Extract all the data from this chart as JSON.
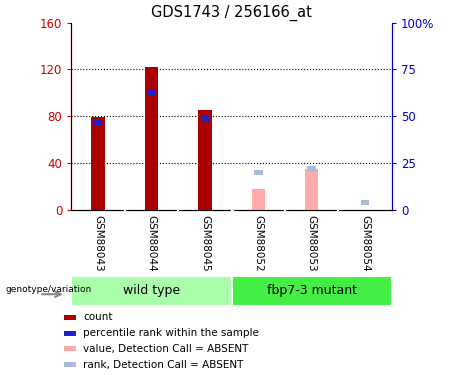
{
  "title": "GDS1743 / 256166_at",
  "samples": [
    "GSM88043",
    "GSM88044",
    "GSM88045",
    "GSM88052",
    "GSM88053",
    "GSM88054"
  ],
  "bar_data": [
    {
      "sample": "GSM88043",
      "count": 79,
      "percentile": 47,
      "absent_value": null,
      "absent_rank": null
    },
    {
      "sample": "GSM88044",
      "count": 122,
      "percentile": 63,
      "absent_value": null,
      "absent_rank": null
    },
    {
      "sample": "GSM88045",
      "count": 85,
      "percentile": 49,
      "absent_value": null,
      "absent_rank": null
    },
    {
      "sample": "GSM88052",
      "count": null,
      "percentile": null,
      "absent_value": 18,
      "absent_rank": 20
    },
    {
      "sample": "GSM88053",
      "count": null,
      "percentile": null,
      "absent_value": 35,
      "absent_rank": 22
    },
    {
      "sample": "GSM88054",
      "count": null,
      "percentile": null,
      "absent_value": null,
      "absent_rank": 4
    }
  ],
  "groups": [
    {
      "name": "wild type",
      "start": 0,
      "end": 3,
      "color": "#AAFFAA"
    },
    {
      "name": "fbp7-3 mutant",
      "start": 3,
      "end": 6,
      "color": "#44EE44"
    }
  ],
  "ylim": [
    0,
    160
  ],
  "y2lim": [
    0,
    100
  ],
  "yticks": [
    0,
    40,
    80,
    120,
    160
  ],
  "ytick_labels": [
    "0",
    "40",
    "80",
    "120",
    "160"
  ],
  "y2ticks": [
    0,
    25,
    50,
    75,
    100
  ],
  "y2tick_labels": [
    "0",
    "25",
    "50",
    "75",
    "100%"
  ],
  "bar_width": 0.25,
  "count_color": "#AA0000",
  "percentile_color": "#2222CC",
  "absent_value_color": "#FFAAAA",
  "absent_rank_color": "#AABBDD",
  "left_axis_color": "#CC0000",
  "right_axis_color": "#0000CC",
  "grid_color": "black",
  "label_bg": "#CCCCCC",
  "legend_items": [
    {
      "label": "count",
      "color": "#AA0000"
    },
    {
      "label": "percentile rank within the sample",
      "color": "#2222CC"
    },
    {
      "label": "value, Detection Call = ABSENT",
      "color": "#FFAAAA"
    },
    {
      "label": "rank, Detection Call = ABSENT",
      "color": "#AABBDD"
    }
  ]
}
